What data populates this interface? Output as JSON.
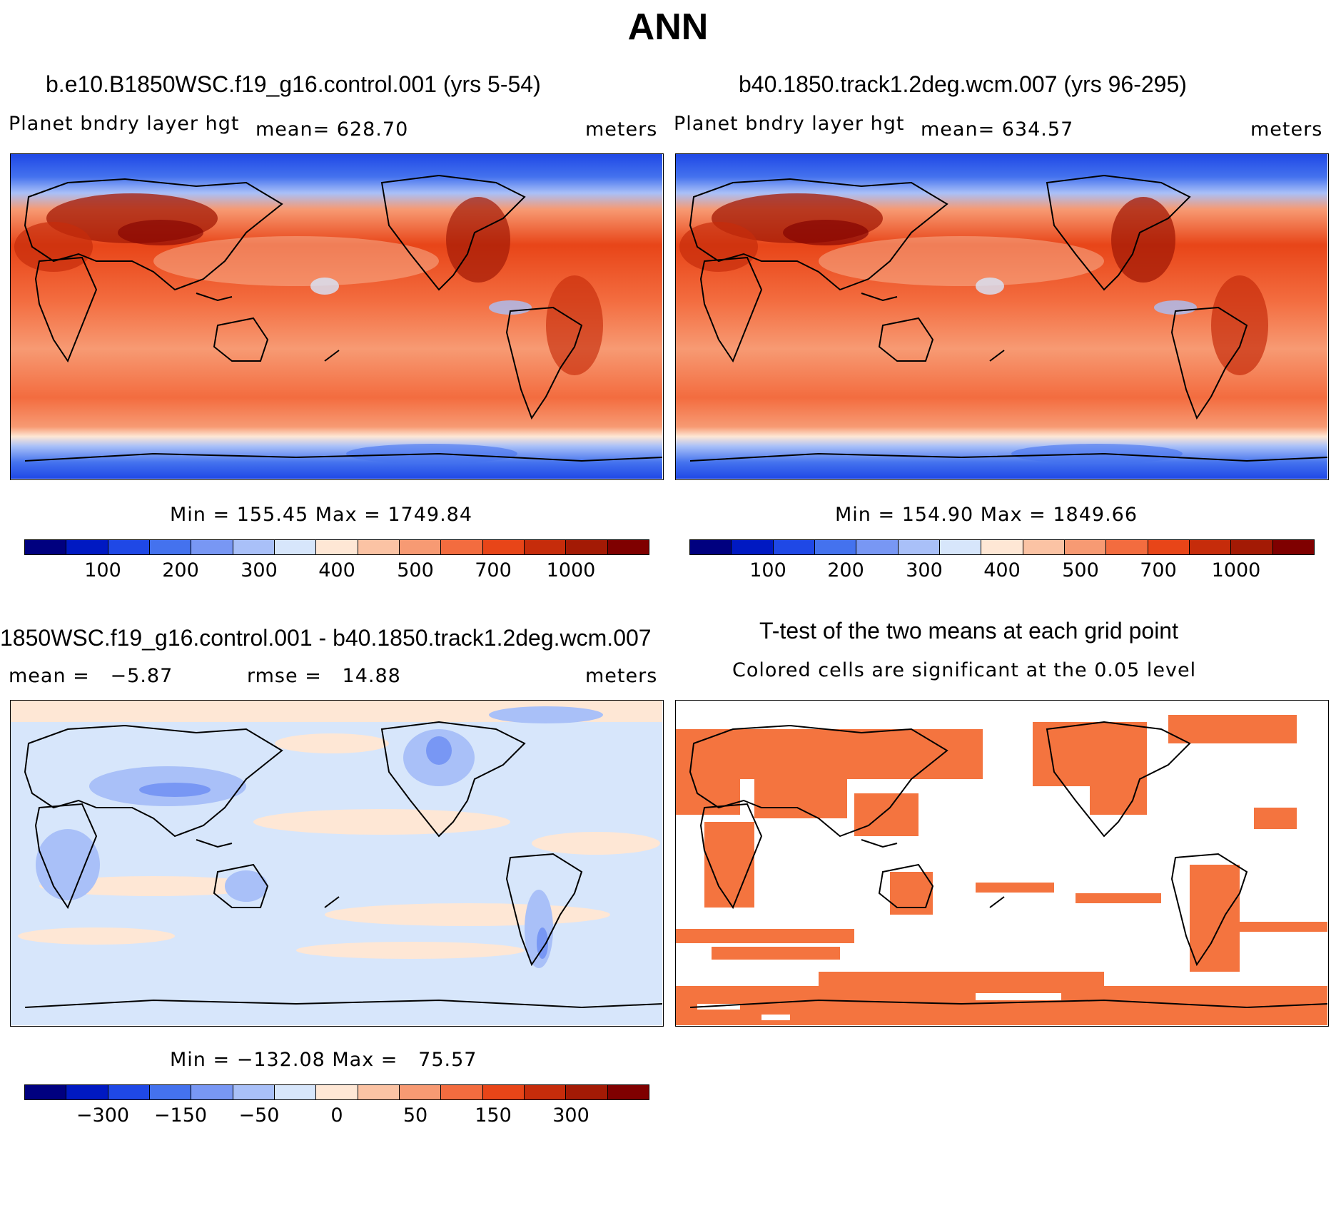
{
  "main_title": "ANN",
  "panels": {
    "top_left": {
      "title": "b.e10.B1850WSC.f19_g16.control.001 (yrs 5-54)",
      "variable": "Planet bndry layer hgt",
      "mean": "mean= 628.70",
      "units": "meters",
      "minmax": "Min = 155.45 Max = 1749.84",
      "colorbar_ticks": [
        "100",
        "200",
        "300",
        "400",
        "500",
        "700",
        "1000"
      ]
    },
    "top_right": {
      "title": "b40.1850.track1.2deg.wcm.007 (yrs 96-295)",
      "variable": "Planet bndry layer hgt",
      "mean": "mean= 634.57",
      "units": "meters",
      "minmax": "Min = 154.90 Max = 1849.66",
      "colorbar_ticks": [
        "100",
        "200",
        "300",
        "400",
        "500",
        "700",
        "1000"
      ]
    },
    "bottom_left": {
      "title": "1850WSC.f19_g16.control.001 - b40.1850.track1.2deg.wcm.007",
      "mean": "mean =   −5.87",
      "rmse": "rmse =   14.88",
      "units": "meters",
      "minmax": "Min = −132.08 Max =   75.57",
      "colorbar_ticks": [
        "−300",
        "−150",
        "−50",
        "0",
        "50",
        "150",
        "300"
      ]
    },
    "bottom_right": {
      "title": "T-test of the two means at each grid point",
      "subtitle": "Colored cells are significant at the 0.05 level"
    }
  },
  "colors": {
    "scale": [
      "#00007f",
      "#0019c2",
      "#1f48e6",
      "#4472ee",
      "#7897f4",
      "#a9c0f8",
      "#d7e6fb",
      "#fee7d5",
      "#fbc3a4",
      "#f79a73",
      "#f36c3f",
      "#e84518",
      "#c62c0b",
      "#a31a05",
      "#7f0000"
    ],
    "significant": "#f4743f"
  }
}
